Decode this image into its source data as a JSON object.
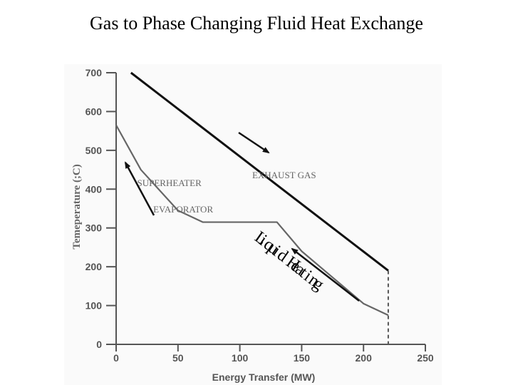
{
  "slide": {
    "title": "Gas to Phase Changing Fluid Heat Exchange"
  },
  "chart_data": {
    "type": "line",
    "title": "",
    "xlabel": "Energy Transfer (MW)",
    "ylabel": "Temeperature (;C)",
    "xlim": [
      0,
      250
    ],
    "ylim": [
      0,
      700
    ],
    "x_ticks": [
      0,
      50,
      100,
      150,
      200,
      250
    ],
    "y_ticks": [
      0,
      100,
      200,
      300,
      400,
      500,
      600,
      700
    ],
    "grid": false,
    "series": [
      {
        "name": "EXHAUST GAS",
        "x": [
          12,
          220
        ],
        "y": [
          700,
          190
        ],
        "color": "#111111"
      },
      {
        "name": "",
        "x": [
          0,
          20,
          50,
          70,
          130,
          150,
          200,
          220
        ],
        "y": [
          565,
          450,
          345,
          315,
          315,
          240,
          105,
          75
        ],
        "color": "#666666"
      }
    ],
    "annotations": {
      "superheater": "SUPERHEATER",
      "evaporator": "EVAPORATOR",
      "exhaust_gas": "EXHAUST GAS",
      "liquid_heating": "Liquid Heating"
    }
  }
}
